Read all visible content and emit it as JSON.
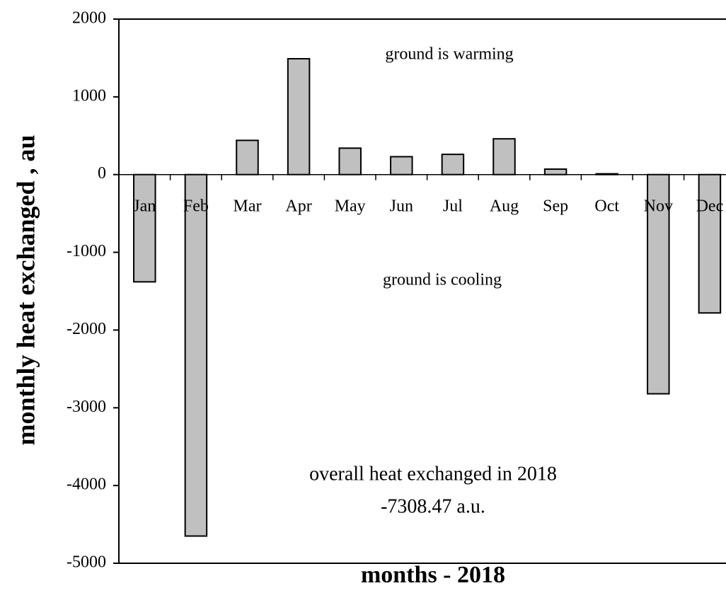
{
  "chart_data": {
    "type": "bar",
    "x_label": "months  -  2018",
    "y_label": "monthly heat exchanged , au",
    "annotations": [
      "ground is warming",
      "ground is cooling",
      "overall heat exchanged in 2018",
      "-7308.47 a.u."
    ],
    "categories": [
      "Jan",
      "Feb",
      "Mar",
      "Apr",
      "May",
      "Jun",
      "Jul",
      "Aug",
      "Sep",
      "Oct",
      "Nov",
      "Dec"
    ],
    "values": [
      -1380,
      -4650,
      440,
      1490,
      340,
      230,
      260,
      460,
      70,
      10,
      -2820,
      -1780
    ],
    "color": "#c0c0c0",
    "ylim": [
      -5000,
      2000
    ],
    "yticks": [
      -5000,
      -4000,
      -3000,
      -2000,
      -1000,
      0,
      1000,
      2000
    ],
    "grid": false
  }
}
